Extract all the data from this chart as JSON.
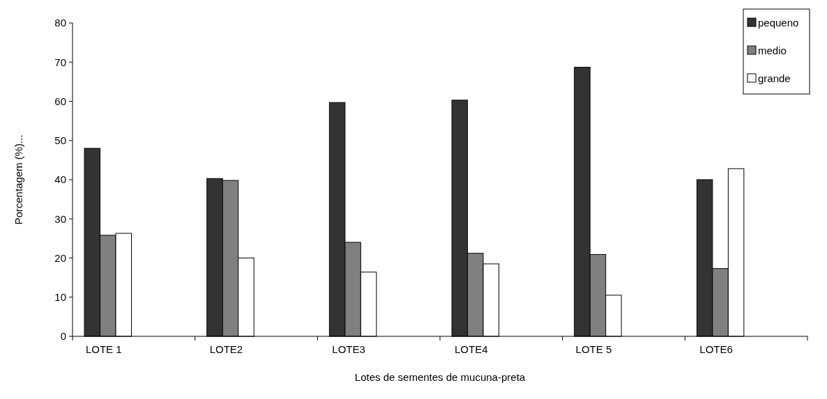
{
  "chart_data": {
    "type": "bar",
    "xlabel": "Lotes de sementes de mucuna-preta",
    "ylabel": "Porcentagem (%)...",
    "categories": [
      "LOTE 1",
      "LOTE2",
      "LOTE3",
      "LOTE4",
      "LOTE 5",
      "LOTE6"
    ],
    "series": [
      {
        "name": "pequeno",
        "color": "#333333",
        "values": [
          48,
          40.3,
          59.7,
          60.3,
          68.7,
          40
        ]
      },
      {
        "name": "medio",
        "color": "#808080",
        "values": [
          25.8,
          39.8,
          24,
          21.2,
          20.9,
          17.3
        ]
      },
      {
        "name": "grande",
        "color": "#ffffff",
        "values": [
          26.3,
          20,
          16.4,
          18.5,
          10.5,
          42.8
        ]
      }
    ],
    "ylim": [
      0,
      80
    ],
    "yticks": [
      0,
      10,
      20,
      30,
      40,
      50,
      60,
      70,
      80
    ],
    "grid": false,
    "legend": "top right"
  }
}
